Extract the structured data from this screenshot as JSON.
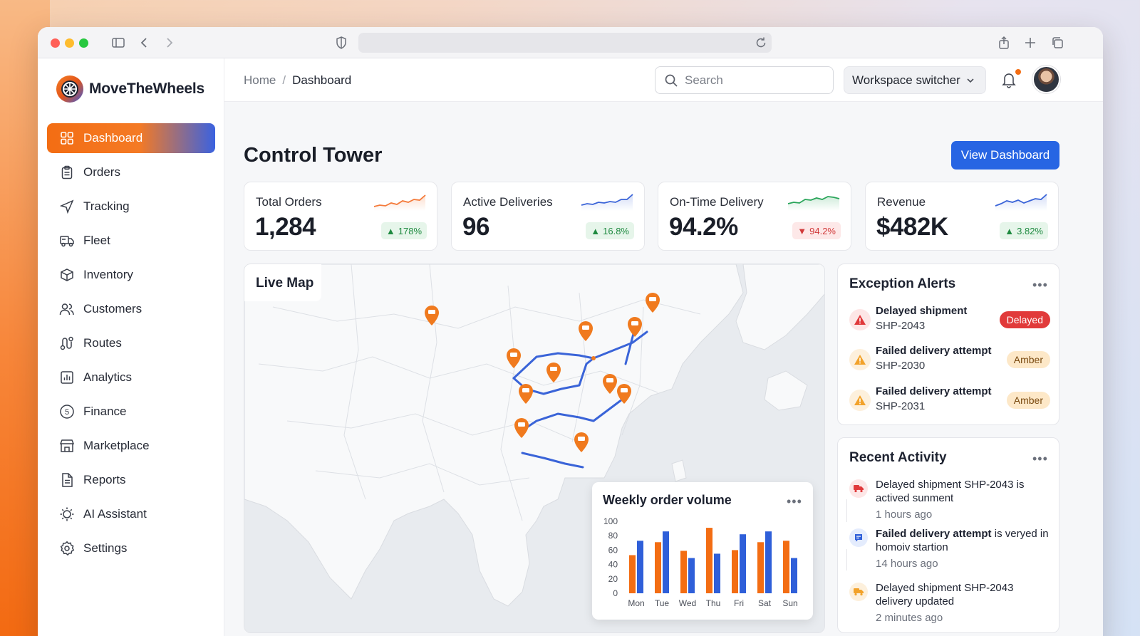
{
  "app": {
    "brand": "MoveTheWheels",
    "colors": {
      "accent": "#f36d13",
      "primary": "#2765e3",
      "route": "#3a64d8",
      "pin": "#f07a1e"
    }
  },
  "browser": {
    "icons": [
      "sidebar-toggle-icon",
      "back-icon",
      "forward-icon",
      "shield-icon",
      "reload-icon",
      "share-icon",
      "new-tab-icon",
      "tabs-icon"
    ]
  },
  "sidebar": {
    "items": [
      {
        "label": "Dashboard",
        "icon": "grid-icon",
        "active": true
      },
      {
        "label": "Orders",
        "icon": "clipboard-icon"
      },
      {
        "label": "Tracking",
        "icon": "navigation-icon"
      },
      {
        "label": "Fleet",
        "icon": "truck-icon"
      },
      {
        "label": "Inventory",
        "icon": "box-icon"
      },
      {
        "label": "Customers",
        "icon": "users-icon"
      },
      {
        "label": "Routes",
        "icon": "route-icon"
      },
      {
        "label": "Analytics",
        "icon": "bar-chart-icon"
      },
      {
        "label": "Finance",
        "icon": "dollar-circle-icon"
      },
      {
        "label": "Marketplace",
        "icon": "store-icon"
      },
      {
        "label": "Reports",
        "icon": "file-text-icon"
      },
      {
        "label": "AI Assistant",
        "icon": "sparkle-icon"
      },
      {
        "label": "Settings",
        "icon": "gear-icon"
      }
    ]
  },
  "header": {
    "breadcrumb": {
      "home": "Home",
      "separator": "/",
      "current": "Dashboard"
    },
    "search_placeholder": "Search",
    "workspace_label": "Workspace switcher"
  },
  "page": {
    "title": "Control Tower",
    "view_button": "View Dashboard"
  },
  "stats": [
    {
      "label": "Total Orders",
      "value": "1,284",
      "change": "178%",
      "trend": "up",
      "spark_color": "#f47a3a"
    },
    {
      "label": "Active Deliveries",
      "value": "96",
      "change": "16.8%",
      "trend": "up",
      "spark_color": "#3a64d8"
    },
    {
      "label": "On-Time Delivery",
      "value": "94.2%",
      "change": "94.2%",
      "trend": "down",
      "spark_color": "#2aa55a"
    },
    {
      "label": "Revenue",
      "value": "$482K",
      "change": "3.82%",
      "trend": "up",
      "spark_color": "#3a64d8"
    }
  ],
  "map": {
    "title": "Live Map"
  },
  "weekly_chart": {
    "title": "Weekly order volume"
  },
  "chart_data": {
    "type": "bar",
    "categories": [
      "Mon",
      "Tue",
      "Wed",
      "Thu",
      "Fri",
      "Sat",
      "Sun"
    ],
    "series": [
      {
        "color": "#f36d13",
        "values": [
          53,
          71,
          59,
          91,
          60,
          71,
          73
        ]
      },
      {
        "color": "#2f5fd9",
        "values": [
          73,
          86,
          49,
          55,
          82,
          86,
          49
        ]
      }
    ],
    "ylim": [
      0,
      100
    ],
    "yticks": [
      0,
      20,
      40,
      60,
      80,
      100
    ],
    "legend": "none"
  },
  "alerts": {
    "title": "Exception Alerts",
    "items": [
      {
        "title": "Delayed shipment",
        "id": "SHP-2043",
        "status": "Delayed",
        "level": "red"
      },
      {
        "title": "Failed delivery attempt",
        "id": "SHP-2030",
        "status": "Amber",
        "level": "amber"
      },
      {
        "title": "Failed delivery attempt",
        "id": "SHP-2031",
        "status": "Amber",
        "level": "amber"
      }
    ]
  },
  "activity": {
    "title": "Recent Activity",
    "items": [
      {
        "text": "Delayed shipment SHP-2043 is actived sunment",
        "time": "1 hours ago",
        "icon": "truck-icon"
      },
      {
        "text": "Failed delivery attempt is veryed in homoiv startion",
        "time": "14 hours ago",
        "icon": "message-icon"
      },
      {
        "text": "Delayed shipment SHP-2043 delivery updated",
        "time": "2 minutes ago",
        "icon": "package-icon"
      }
    ]
  }
}
